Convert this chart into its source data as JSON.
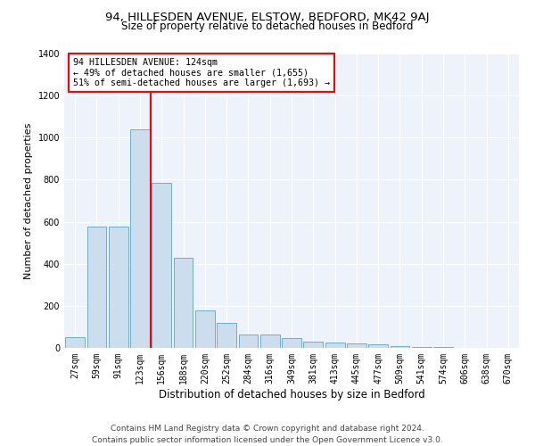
{
  "title1": "94, HILLESDEN AVENUE, ELSTOW, BEDFORD, MK42 9AJ",
  "title2": "Size of property relative to detached houses in Bedford",
  "xlabel": "Distribution of detached houses by size in Bedford",
  "ylabel": "Number of detached properties",
  "bar_labels": [
    "27sqm",
    "59sqm",
    "91sqm",
    "123sqm",
    "156sqm",
    "188sqm",
    "220sqm",
    "252sqm",
    "284sqm",
    "316sqm",
    "349sqm",
    "381sqm",
    "413sqm",
    "445sqm",
    "477sqm",
    "509sqm",
    "541sqm",
    "574sqm",
    "606sqm",
    "638sqm",
    "670sqm"
  ],
  "bar_values": [
    50,
    575,
    575,
    1040,
    785,
    430,
    180,
    120,
    65,
    65,
    45,
    30,
    25,
    20,
    15,
    10,
    5,
    3,
    2,
    1,
    1
  ],
  "bar_color": "#ccdded",
  "bar_edge_color": "#6aaed6",
  "vline_x_index": 3,
  "annotation_text": "94 HILLESDEN AVENUE: 124sqm\n← 49% of detached houses are smaller (1,655)\n51% of semi-detached houses are larger (1,693) →",
  "annotation_box_color": "white",
  "annotation_box_edge_color": "red",
  "vline_color": "red",
  "ylim": [
    0,
    1400
  ],
  "yticks": [
    0,
    200,
    400,
    600,
    800,
    1000,
    1200,
    1400
  ],
  "bg_color": "#eef2fb",
  "footer": "Contains HM Land Registry data © Crown copyright and database right 2024.\nContains public sector information licensed under the Open Government Licence v3.0.",
  "title1_fontsize": 9.5,
  "title2_fontsize": 8.5,
  "xlabel_fontsize": 8.5,
  "ylabel_fontsize": 8,
  "tick_fontsize": 7,
  "footer_fontsize": 6.5
}
